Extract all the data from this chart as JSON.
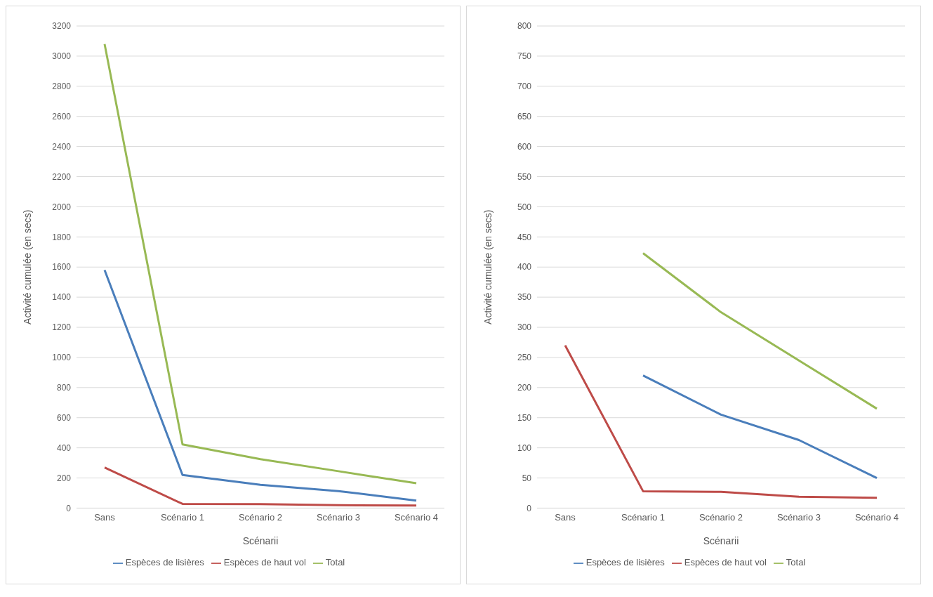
{
  "chart_data": [
    {
      "type": "line",
      "xlabel": "Scénarii",
      "ylabel": "Activité cumulée (en secs)",
      "categories": [
        "Sans",
        "Scénario 1",
        "Scénario 2",
        "Scénario 3",
        "Scénario 4"
      ],
      "series": [
        {
          "name": "Espèces de lisières",
          "color": "#4a7ebb",
          "values": [
            1580,
            220,
            155,
            113,
            50
          ]
        },
        {
          "name": "Espèces de haut vol",
          "color": "#be4b48",
          "values": [
            270,
            28,
            27,
            19,
            17
          ]
        },
        {
          "name": "Total",
          "color": "#98b954",
          "values": [
            3080,
            423,
            325,
            245,
            165
          ]
        }
      ],
      "ylim": [
        0,
        3200
      ],
      "yticks": [
        0,
        200,
        400,
        600,
        800,
        1000,
        1200,
        1400,
        1600,
        1800,
        2000,
        2200,
        2400,
        2600,
        2800,
        3000,
        3200
      ],
      "grid": "y",
      "legend": "bottom",
      "marker": "none",
      "line_style": "solid"
    },
    {
      "type": "line",
      "xlabel": "Scénarii",
      "ylabel": "Activité cumulée (en secs)",
      "categories": [
        "Sans",
        "Scénario 1",
        "Scénario 2",
        "Scénario 3",
        "Scénario 4"
      ],
      "series": [
        {
          "name": "Espèces de lisières",
          "color": "#4a7ebb",
          "values": [
            null,
            220,
            155,
            113,
            50
          ]
        },
        {
          "name": "Espèces de haut vol",
          "color": "#be4b48",
          "values": [
            270,
            28,
            27,
            19,
            17
          ]
        },
        {
          "name": "Total",
          "color": "#98b954",
          "values": [
            null,
            423,
            325,
            245,
            165
          ]
        }
      ],
      "ylim": [
        0,
        800
      ],
      "yticks": [
        0,
        50,
        100,
        150,
        200,
        250,
        300,
        350,
        400,
        450,
        500,
        550,
        600,
        650,
        700,
        750,
        800
      ],
      "grid": "y",
      "legend": "bottom",
      "marker": "none",
      "line_style": "solid"
    }
  ]
}
